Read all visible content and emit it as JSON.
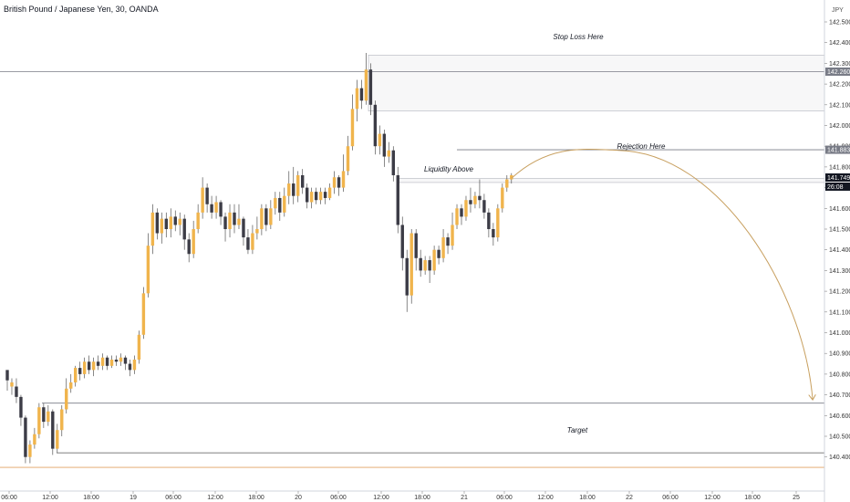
{
  "header": {
    "symbol": "British Pound / Japanese Yen, 30, OANDA",
    "currency": "JPY"
  },
  "chart_data": {
    "type": "candlestick",
    "ylim": [
      140.34,
      142.52
    ],
    "y_ticks": [
      "142.500",
      "142.400",
      "142.300",
      "142.200",
      "142.100",
      "142.000",
      "141.900",
      "141.800",
      "141.700",
      "141.600",
      "141.500",
      "141.400",
      "141.300",
      "141.200",
      "141.100",
      "141.000",
      "140.900",
      "140.800",
      "140.700",
      "140.600",
      "140.500",
      "140.400"
    ],
    "x_ticks": [
      "06:00",
      "12:00",
      "18:00",
      "19",
      "06:00",
      "12:00",
      "18:00",
      "20",
      "06:00",
      "12:00",
      "18:00",
      "21",
      "06:00",
      "12:00",
      "18:00",
      "22",
      "06:00",
      "12:00",
      "18:00",
      "25"
    ],
    "price_tags": [
      {
        "text": "142.260",
        "value": 142.26,
        "color": "#787b86"
      },
      {
        "text": "141.883",
        "value": 141.883,
        "color": "#787b86"
      },
      {
        "text": "141.749",
        "value": 141.749,
        "color": "#131722"
      },
      {
        "text": "26:08",
        "value": 141.705,
        "color": "#131722"
      }
    ],
    "levels": [
      {
        "value": 142.26,
        "x_start": 0,
        "color": "#787b86"
      },
      {
        "value": 141.883,
        "x_start": 501,
        "color": "#787b86"
      },
      {
        "value": 140.66,
        "x_start": 46,
        "color": "#787b86"
      },
      {
        "value": 140.42,
        "x_start": 62,
        "color": "#555555"
      },
      {
        "value": 140.35,
        "x_start": 0,
        "color": "#e0a060"
      }
    ],
    "zones": [
      {
        "top": 142.34,
        "bottom": 142.07,
        "x_start": 404
      },
      {
        "top": 141.745,
        "bottom": 141.725,
        "x_start": 437
      }
    ],
    "annotations": [
      {
        "text": "Stop Loss Here",
        "value": 142.43,
        "x": 634
      },
      {
        "text": "Rejection Here",
        "value": 141.9,
        "x": 703
      },
      {
        "text": "Liquidity Above",
        "value": 141.79,
        "x": 492
      },
      {
        "text": "Target",
        "value": 140.53,
        "x": 633
      }
    ],
    "candles": [
      [
        140.82,
        140.77,
        140.79,
        140.72
      ],
      [
        140.74,
        140.76,
        140.78,
        140.7
      ],
      [
        140.74,
        140.69,
        140.78,
        140.66
      ],
      [
        140.69,
        140.59,
        140.7,
        140.55
      ],
      [
        140.59,
        140.4,
        140.6,
        140.37
      ],
      [
        140.4,
        140.46,
        140.48,
        140.37
      ],
      [
        140.46,
        140.51,
        140.54,
        140.44
      ],
      [
        140.51,
        140.64,
        140.66,
        140.49
      ],
      [
        140.64,
        140.57,
        140.66,
        140.54
      ],
      [
        140.57,
        140.62,
        140.65,
        140.55
      ],
      [
        140.62,
        140.44,
        140.63,
        140.41
      ],
      [
        140.44,
        140.53,
        140.56,
        140.42
      ],
      [
        140.53,
        140.63,
        140.65,
        140.5
      ],
      [
        140.63,
        140.73,
        140.78,
        140.61
      ],
      [
        140.73,
        140.76,
        140.8,
        140.71
      ],
      [
        140.76,
        140.83,
        140.84,
        140.74
      ],
      [
        140.83,
        140.8,
        140.86,
        140.77
      ],
      [
        140.8,
        140.86,
        140.88,
        140.78
      ],
      [
        140.86,
        140.82,
        140.89,
        140.8
      ],
      [
        140.82,
        140.86,
        140.88,
        140.79
      ],
      [
        140.86,
        140.84,
        140.89,
        140.82
      ],
      [
        140.84,
        140.88,
        140.9,
        140.82
      ],
      [
        140.88,
        140.84,
        140.89,
        140.82
      ],
      [
        140.84,
        140.87,
        140.89,
        140.83
      ],
      [
        140.87,
        140.86,
        140.89,
        140.84
      ],
      [
        140.86,
        140.88,
        140.9,
        140.84
      ],
      [
        140.88,
        140.85,
        140.89,
        140.82
      ],
      [
        140.85,
        140.82,
        140.87,
        140.79
      ],
      [
        140.82,
        140.87,
        140.89,
        140.8
      ],
      [
        140.87,
        140.99,
        141.01,
        140.85
      ],
      [
        140.99,
        141.19,
        141.22,
        140.97
      ],
      [
        141.19,
        141.42,
        141.48,
        141.17
      ],
      [
        141.42,
        141.58,
        141.62,
        141.38
      ],
      [
        141.58,
        141.48,
        141.6,
        141.45
      ],
      [
        141.48,
        141.55,
        141.58,
        141.43
      ],
      [
        141.55,
        141.5,
        141.58,
        141.46
      ],
      [
        141.5,
        141.56,
        141.6,
        141.46
      ],
      [
        141.56,
        141.52,
        141.59,
        141.49
      ],
      [
        141.52,
        141.55,
        141.58,
        141.47
      ],
      [
        141.55,
        141.45,
        141.57,
        141.4
      ],
      [
        141.45,
        141.38,
        141.48,
        141.34
      ],
      [
        141.38,
        141.5,
        141.54,
        141.36
      ],
      [
        141.5,
        141.58,
        141.62,
        141.48
      ],
      [
        141.58,
        141.7,
        141.75,
        141.55
      ],
      [
        141.7,
        141.62,
        141.72,
        141.58
      ],
      [
        141.62,
        141.58,
        141.66,
        141.55
      ],
      [
        141.58,
        141.63,
        141.66,
        141.55
      ],
      [
        141.63,
        141.56,
        141.64,
        141.52
      ],
      [
        141.56,
        141.5,
        141.58,
        141.44
      ],
      [
        141.5,
        141.58,
        141.62,
        141.46
      ],
      [
        141.58,
        141.52,
        141.62,
        141.48
      ],
      [
        141.52,
        141.55,
        141.62,
        141.5
      ],
      [
        141.55,
        141.46,
        141.56,
        141.42
      ],
      [
        141.46,
        141.4,
        141.5,
        141.38
      ],
      [
        141.4,
        141.48,
        141.52,
        141.38
      ],
      [
        141.48,
        141.5,
        141.56,
        141.45
      ],
      [
        141.5,
        141.6,
        141.62,
        141.47
      ],
      [
        141.6,
        141.52,
        141.62,
        141.49
      ],
      [
        141.52,
        141.6,
        141.64,
        141.5
      ],
      [
        141.6,
        141.65,
        141.68,
        141.57
      ],
      [
        141.65,
        141.58,
        141.68,
        141.54
      ],
      [
        141.58,
        141.66,
        141.7,
        141.56
      ],
      [
        141.66,
        141.72,
        141.78,
        141.62
      ],
      [
        141.72,
        141.66,
        141.8,
        141.62
      ],
      [
        141.66,
        141.76,
        141.78,
        141.63
      ],
      [
        141.76,
        141.7,
        141.79,
        141.67
      ],
      [
        141.7,
        141.63,
        141.72,
        141.6
      ],
      [
        141.63,
        141.68,
        141.7,
        141.6
      ],
      [
        141.68,
        141.64,
        141.7,
        141.62
      ],
      [
        141.64,
        141.68,
        141.7,
        141.62
      ],
      [
        141.68,
        141.65,
        141.7,
        141.62
      ],
      [
        141.65,
        141.7,
        141.72,
        141.64
      ],
      [
        141.7,
        141.75,
        141.78,
        141.67
      ],
      [
        141.75,
        141.7,
        141.76,
        141.66
      ],
      [
        141.7,
        141.78,
        141.86,
        141.68
      ],
      [
        141.78,
        141.9,
        141.95,
        141.76
      ],
      [
        141.9,
        142.08,
        142.15,
        141.88
      ],
      [
        142.08,
        142.18,
        142.22,
        142.02
      ],
      [
        142.18,
        142.12,
        142.22,
        142.08
      ],
      [
        142.12,
        142.27,
        142.35,
        142.1
      ],
      [
        142.27,
        142.1,
        142.3,
        142.05
      ],
      [
        142.1,
        141.9,
        142.12,
        141.86
      ],
      [
        141.9,
        141.96,
        142.0,
        141.86
      ],
      [
        141.96,
        141.85,
        141.98,
        141.8
      ],
      [
        141.85,
        141.88,
        141.92,
        141.82
      ],
      [
        141.88,
        141.76,
        141.9,
        141.73
      ],
      [
        141.76,
        141.52,
        141.8,
        141.48
      ],
      [
        141.52,
        141.36,
        141.56,
        141.3
      ],
      [
        141.36,
        141.18,
        141.4,
        141.1
      ],
      [
        141.18,
        141.48,
        141.5,
        141.14
      ],
      [
        141.48,
        141.36,
        141.5,
        141.3
      ],
      [
        141.36,
        141.3,
        141.4,
        141.27
      ],
      [
        141.3,
        141.35,
        141.37,
        141.28
      ],
      [
        141.35,
        141.3,
        141.37,
        141.24
      ],
      [
        141.3,
        141.4,
        141.42,
        141.28
      ],
      [
        141.4,
        141.36,
        141.42,
        141.33
      ],
      [
        141.36,
        141.46,
        141.5,
        141.34
      ],
      [
        141.46,
        141.42,
        141.48,
        141.38
      ],
      [
        141.42,
        141.52,
        141.58,
        141.4
      ],
      [
        141.52,
        141.6,
        141.62,
        141.5
      ],
      [
        141.6,
        141.56,
        141.62,
        141.52
      ],
      [
        141.56,
        141.64,
        141.66,
        141.54
      ],
      [
        141.64,
        141.62,
        141.7,
        141.58
      ],
      [
        141.62,
        141.66,
        141.68,
        141.6
      ],
      [
        141.66,
        141.64,
        141.74,
        141.6
      ],
      [
        141.64,
        141.58,
        141.67,
        141.55
      ],
      [
        141.58,
        141.5,
        141.6,
        141.46
      ],
      [
        141.5,
        141.46,
        141.53,
        141.42
      ],
      [
        141.46,
        141.6,
        141.62,
        141.44
      ],
      [
        141.6,
        141.7,
        141.72,
        141.58
      ],
      [
        141.7,
        141.74,
        141.76,
        141.68
      ],
      [
        141.74,
        141.76,
        141.77,
        141.72
      ]
    ],
    "projection": {
      "from_index": 111,
      "from_value": 141.745,
      "peak_x": 678,
      "peak_value": 141.88,
      "to_x": 891,
      "to_value": 140.68
    }
  }
}
